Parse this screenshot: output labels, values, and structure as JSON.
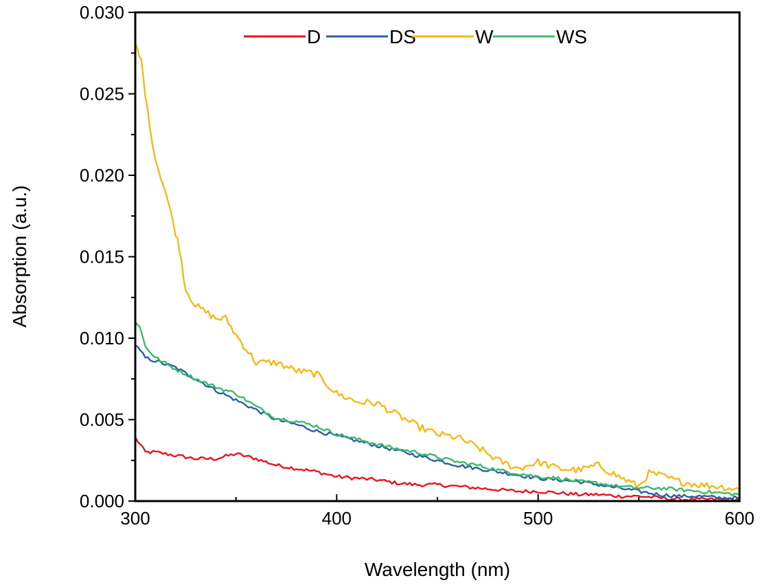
{
  "chart_data": {
    "type": "line",
    "title": "",
    "xlabel": "Wavelength (nm)",
    "ylabel": "Absorption (a.u.)",
    "xlim": [
      300,
      600
    ],
    "ylim": [
      0,
      0.03
    ],
    "xticks": [
      300,
      400,
      500,
      600
    ],
    "xtick_labels": [
      "300",
      "400",
      "500",
      "600"
    ],
    "yticks": [
      0,
      0.005,
      0.01,
      0.015,
      0.02,
      0.025,
      0.03
    ],
    "ytick_labels": [
      "0.000",
      "0.005",
      "0.010",
      "0.015",
      "0.020",
      "0.025",
      "0.030"
    ],
    "grid": false,
    "legend_position": "top",
    "series": [
      {
        "name": "D",
        "color": "#e8141c",
        "x": [
          300,
          305,
          310,
          320,
          330,
          340,
          350,
          360,
          370,
          380,
          390,
          400,
          410,
          420,
          430,
          440,
          450,
          460,
          470,
          480,
          490,
          500,
          510,
          520,
          530,
          540,
          550,
          560,
          570,
          580,
          590,
          600
        ],
        "y": [
          0.0039,
          0.003,
          0.003,
          0.0028,
          0.0026,
          0.0026,
          0.0029,
          0.0026,
          0.0022,
          0.002,
          0.0018,
          0.0015,
          0.0014,
          0.0013,
          0.0011,
          0.001,
          0.001,
          0.0009,
          0.0008,
          0.0007,
          0.0006,
          0.0006,
          0.0005,
          0.0004,
          0.0004,
          0.0003,
          0.0003,
          0.0002,
          0.0001,
          0.0001,
          0.0001,
          0.0001
        ]
      },
      {
        "name": "DS",
        "color": "#2c5ea8",
        "x": [
          300,
          305,
          310,
          320,
          330,
          340,
          350,
          360,
          370,
          380,
          390,
          400,
          410,
          420,
          430,
          440,
          450,
          460,
          470,
          480,
          490,
          500,
          510,
          520,
          530,
          540,
          550,
          560,
          570,
          580,
          590,
          600
        ],
        "y": [
          0.0096,
          0.0088,
          0.0086,
          0.0082,
          0.0075,
          0.0068,
          0.0062,
          0.0056,
          0.005,
          0.0047,
          0.0043,
          0.004,
          0.0037,
          0.0034,
          0.0031,
          0.0028,
          0.0025,
          0.0022,
          0.002,
          0.0018,
          0.0016,
          0.0014,
          0.0013,
          0.0012,
          0.001,
          0.0008,
          0.0006,
          0.0004,
          0.0003,
          0.0003,
          0.0002,
          0.0002
        ]
      },
      {
        "name": "W",
        "color": "#f5b817",
        "x": [
          300,
          303,
          306,
          310,
          315,
          320,
          322,
          325,
          330,
          340,
          345,
          350,
          360,
          370,
          380,
          390,
          400,
          410,
          420,
          430,
          440,
          450,
          460,
          470,
          480,
          490,
          500,
          510,
          520,
          530,
          540,
          550,
          555,
          560,
          570,
          580,
          590,
          600
        ],
        "y": [
          0.028,
          0.027,
          0.024,
          0.021,
          0.019,
          0.0165,
          0.0155,
          0.013,
          0.012,
          0.0112,
          0.0112,
          0.0102,
          0.0085,
          0.0085,
          0.008,
          0.0078,
          0.0066,
          0.0061,
          0.006,
          0.0053,
          0.0046,
          0.0041,
          0.0039,
          0.0033,
          0.0025,
          0.002,
          0.0024,
          0.002,
          0.0019,
          0.0022,
          0.0015,
          0.0009,
          0.0017,
          0.0016,
          0.0012,
          0.001,
          0.0009,
          0.0007
        ]
      },
      {
        "name": "WS",
        "color": "#3cba6c",
        "x": [
          300,
          302,
          305,
          310,
          320,
          330,
          340,
          350,
          360,
          370,
          380,
          390,
          400,
          410,
          420,
          430,
          440,
          450,
          460,
          470,
          480,
          490,
          500,
          510,
          520,
          530,
          540,
          550,
          560,
          570,
          580,
          590,
          600
        ],
        "y": [
          0.011,
          0.0108,
          0.0095,
          0.0088,
          0.0081,
          0.0075,
          0.007,
          0.0066,
          0.0058,
          0.0051,
          0.0049,
          0.0046,
          0.0041,
          0.0038,
          0.0035,
          0.0032,
          0.003,
          0.0027,
          0.0024,
          0.0022,
          0.0019,
          0.0017,
          0.0015,
          0.0014,
          0.0012,
          0.0011,
          0.0009,
          0.0008,
          0.0008,
          0.0007,
          0.0006,
          0.0005,
          0.0004
        ]
      }
    ]
  }
}
